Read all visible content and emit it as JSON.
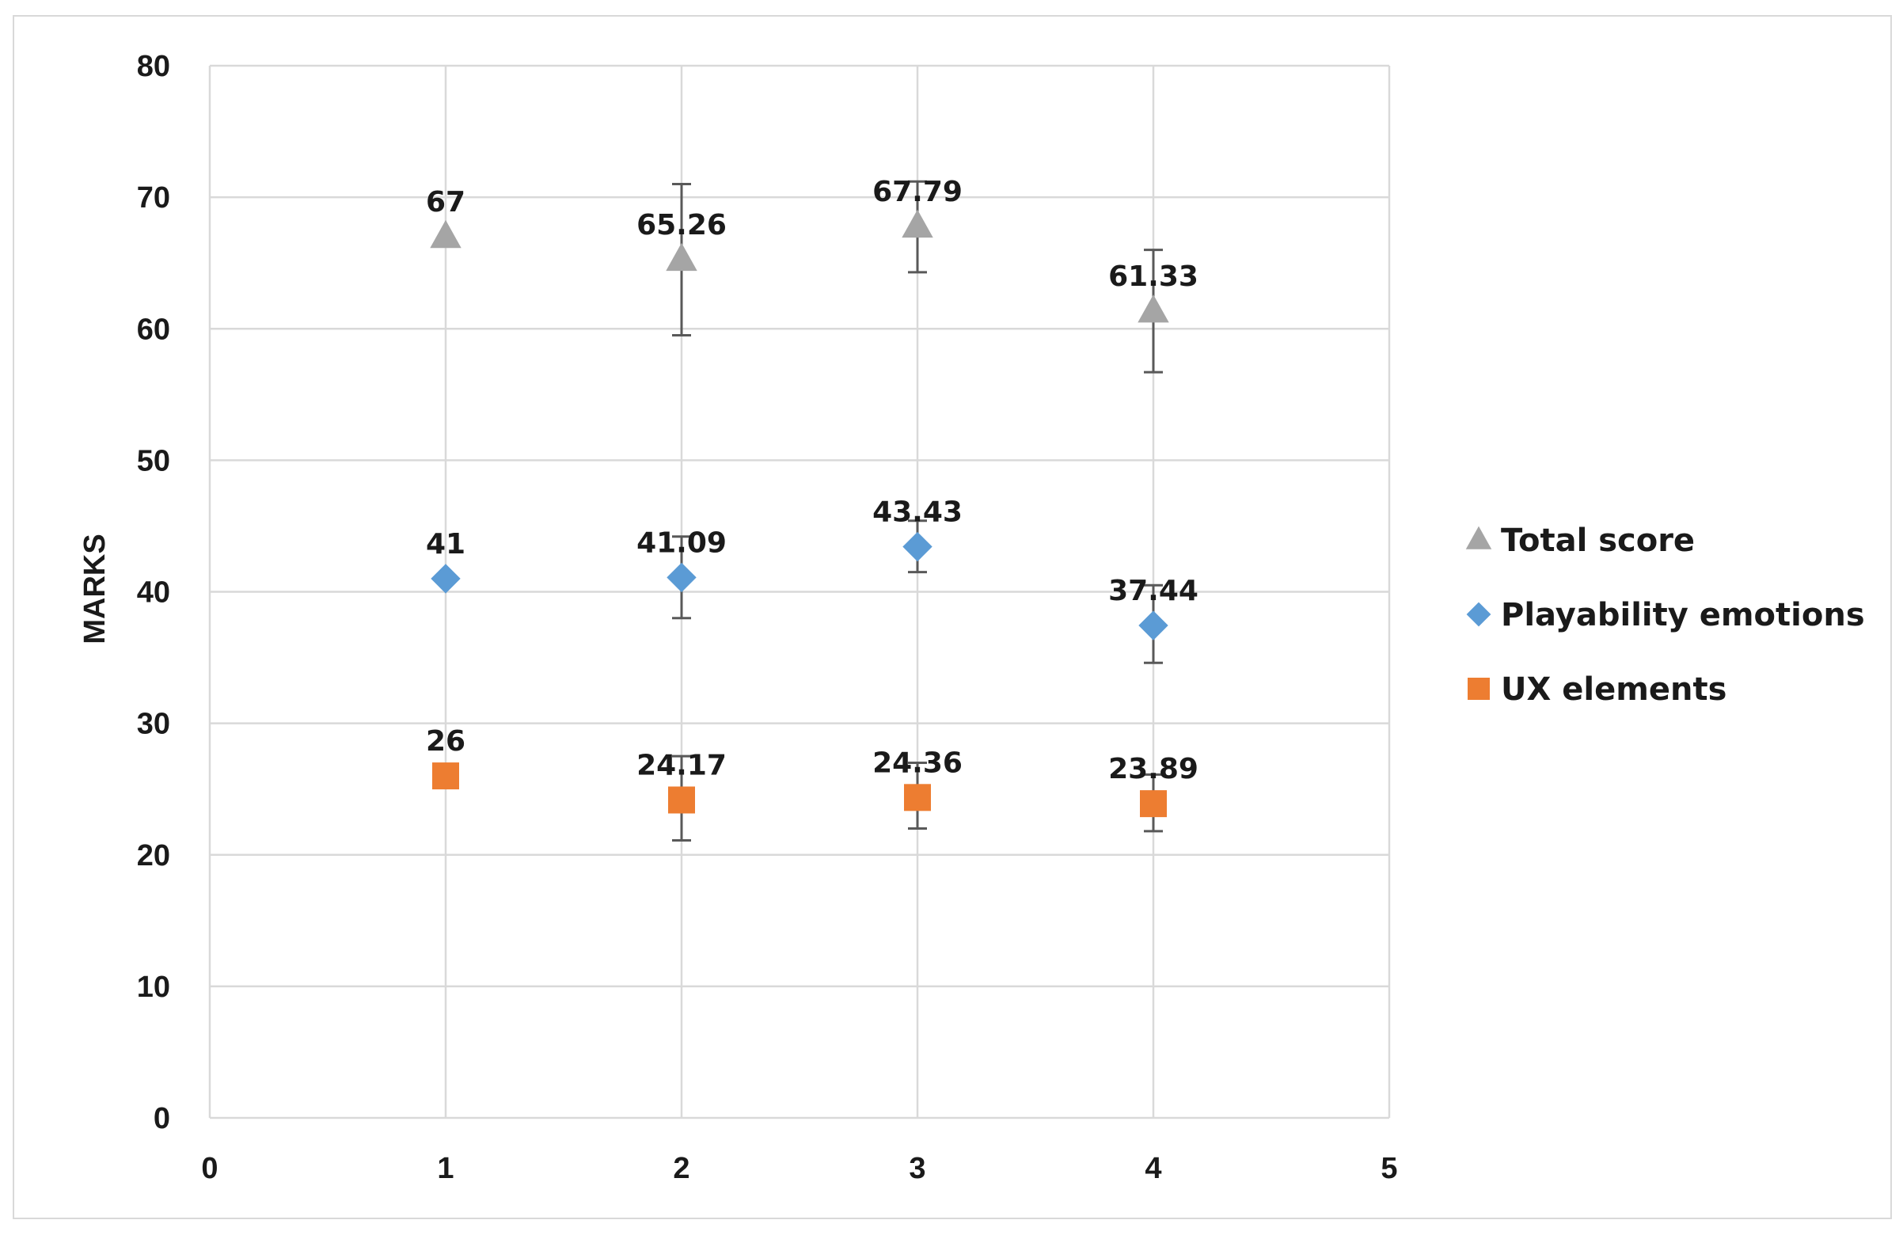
{
  "chart_data": {
    "type": "scatter",
    "title": "",
    "xlabel": "",
    "ylabel": "MARKS",
    "xlim": [
      0,
      5
    ],
    "ylim": [
      0,
      80
    ],
    "x_ticks": [
      "0",
      "1",
      "2",
      "3",
      "4",
      "5"
    ],
    "y_ticks": [
      "0",
      "10",
      "20",
      "30",
      "40",
      "50",
      "60",
      "70",
      "80"
    ],
    "grid": true,
    "legend_position": "right",
    "series": [
      {
        "name": "Total score",
        "marker": "triangle",
        "color": "#a5a5a5",
        "x": [
          1,
          2,
          3,
          4
        ],
        "y": [
          67,
          65.26,
          67.79,
          61.33
        ],
        "labels": [
          "67",
          "65.26",
          "67.79",
          "61.33"
        ],
        "error_low": [
          null,
          59.5,
          64.3,
          56.7
        ],
        "error_high": [
          null,
          71.0,
          71.2,
          66.0
        ]
      },
      {
        "name": "Playability emotions",
        "marker": "diamond",
        "color": "#5b9bd5",
        "x": [
          1,
          2,
          3,
          4
        ],
        "y": [
          41,
          41.09,
          43.43,
          37.44
        ],
        "labels": [
          "41",
          "41.09",
          "43.43",
          "37.44"
        ],
        "error_low": [
          null,
          38.0,
          41.5,
          34.6
        ],
        "error_high": [
          null,
          44.2,
          45.4,
          40.5
        ]
      },
      {
        "name": "UX elements",
        "marker": "square",
        "color": "#ed7d31",
        "x": [
          1,
          2,
          3,
          4
        ],
        "y": [
          26,
          24.17,
          24.36,
          23.89
        ],
        "labels": [
          "26",
          "24.17",
          "24.36",
          "23.89"
        ],
        "error_low": [
          null,
          21.1,
          22.0,
          21.8
        ],
        "error_high": [
          null,
          27.5,
          27.0,
          26.1
        ]
      }
    ]
  },
  "colors": {
    "grid": "#d9d9d9",
    "error_bar": "#595959",
    "text": "#1a1a1a"
  }
}
